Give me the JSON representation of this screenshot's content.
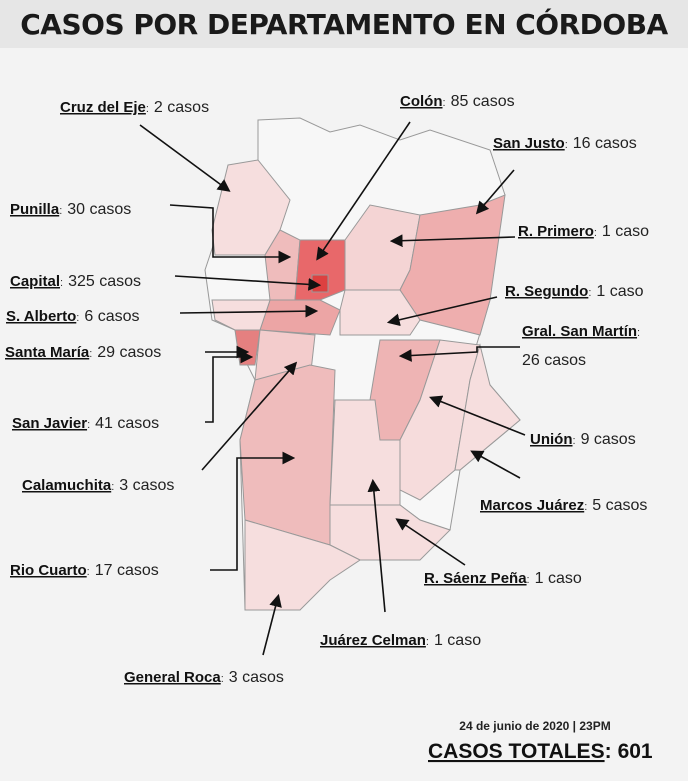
{
  "header": {
    "title": "CASOS POR DEPARTAMENTO EN CÓRDOBA"
  },
  "separator": ":",
  "departments": [
    {
      "name": "Cruz del Eje",
      "cases": "2 casos"
    },
    {
      "name": "Colón",
      "cases": "85 casos"
    },
    {
      "name": "San Justo",
      "cases": "16 casos"
    },
    {
      "name": "Punilla",
      "cases": "30 casos"
    },
    {
      "name": "R. Primero",
      "cases": "1 caso"
    },
    {
      "name": "Capital",
      "cases": "325 casos"
    },
    {
      "name": "R. Segundo",
      "cases": "1 caso"
    },
    {
      "name": "S. Alberto",
      "cases": "6 casos"
    },
    {
      "name": "Gral. San Martín",
      "cases": "26 casos"
    },
    {
      "name": "Santa María",
      "cases": "29 casos"
    },
    {
      "name": "San Javier",
      "cases": "41 casos"
    },
    {
      "name": "Calamuchita",
      "cases": "3 casos"
    },
    {
      "name": "Unión",
      "cases": "9 casos"
    },
    {
      "name": "Marcos Juárez",
      "cases": "5 casos"
    },
    {
      "name": "Rio Cuarto",
      "cases": "17 casos"
    },
    {
      "name": "R. Sáenz Peña",
      "cases": "1 caso"
    },
    {
      "name": "Juárez Celman",
      "cases": "1 caso"
    },
    {
      "name": "General Roca",
      "cases": "3 casos"
    }
  ],
  "footer": {
    "date": "24 de junio de 2020 | 23PM",
    "total": {
      "label": "CASOS TOTALES",
      "value": 601
    }
  }
}
